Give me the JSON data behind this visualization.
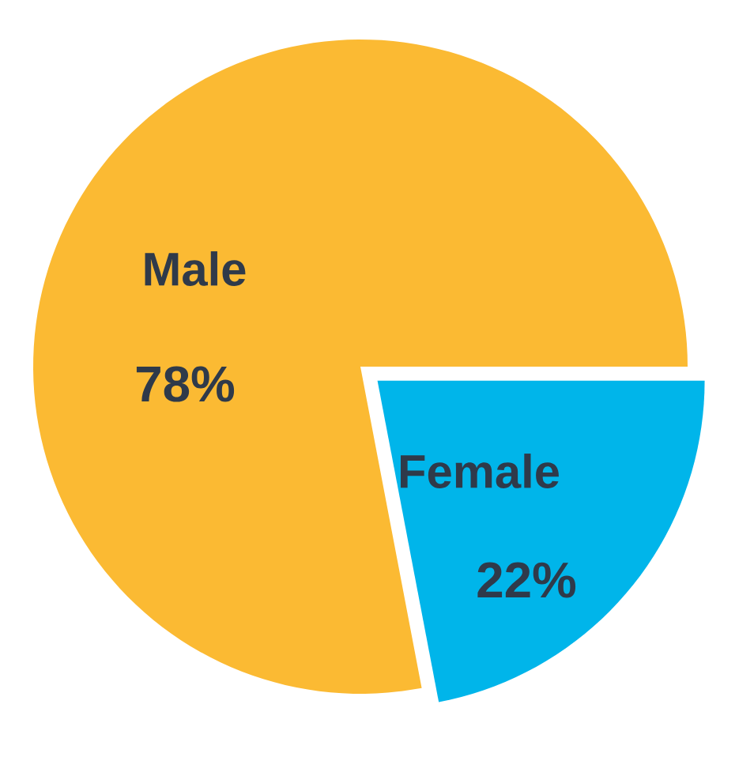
{
  "chart_data": {
    "type": "pie",
    "categories": [
      "Male",
      "Female"
    ],
    "values": [
      78,
      22
    ],
    "value_labels": [
      "78%",
      "22%"
    ],
    "colors": [
      "#fbba33",
      "#00b5ea"
    ]
  }
}
